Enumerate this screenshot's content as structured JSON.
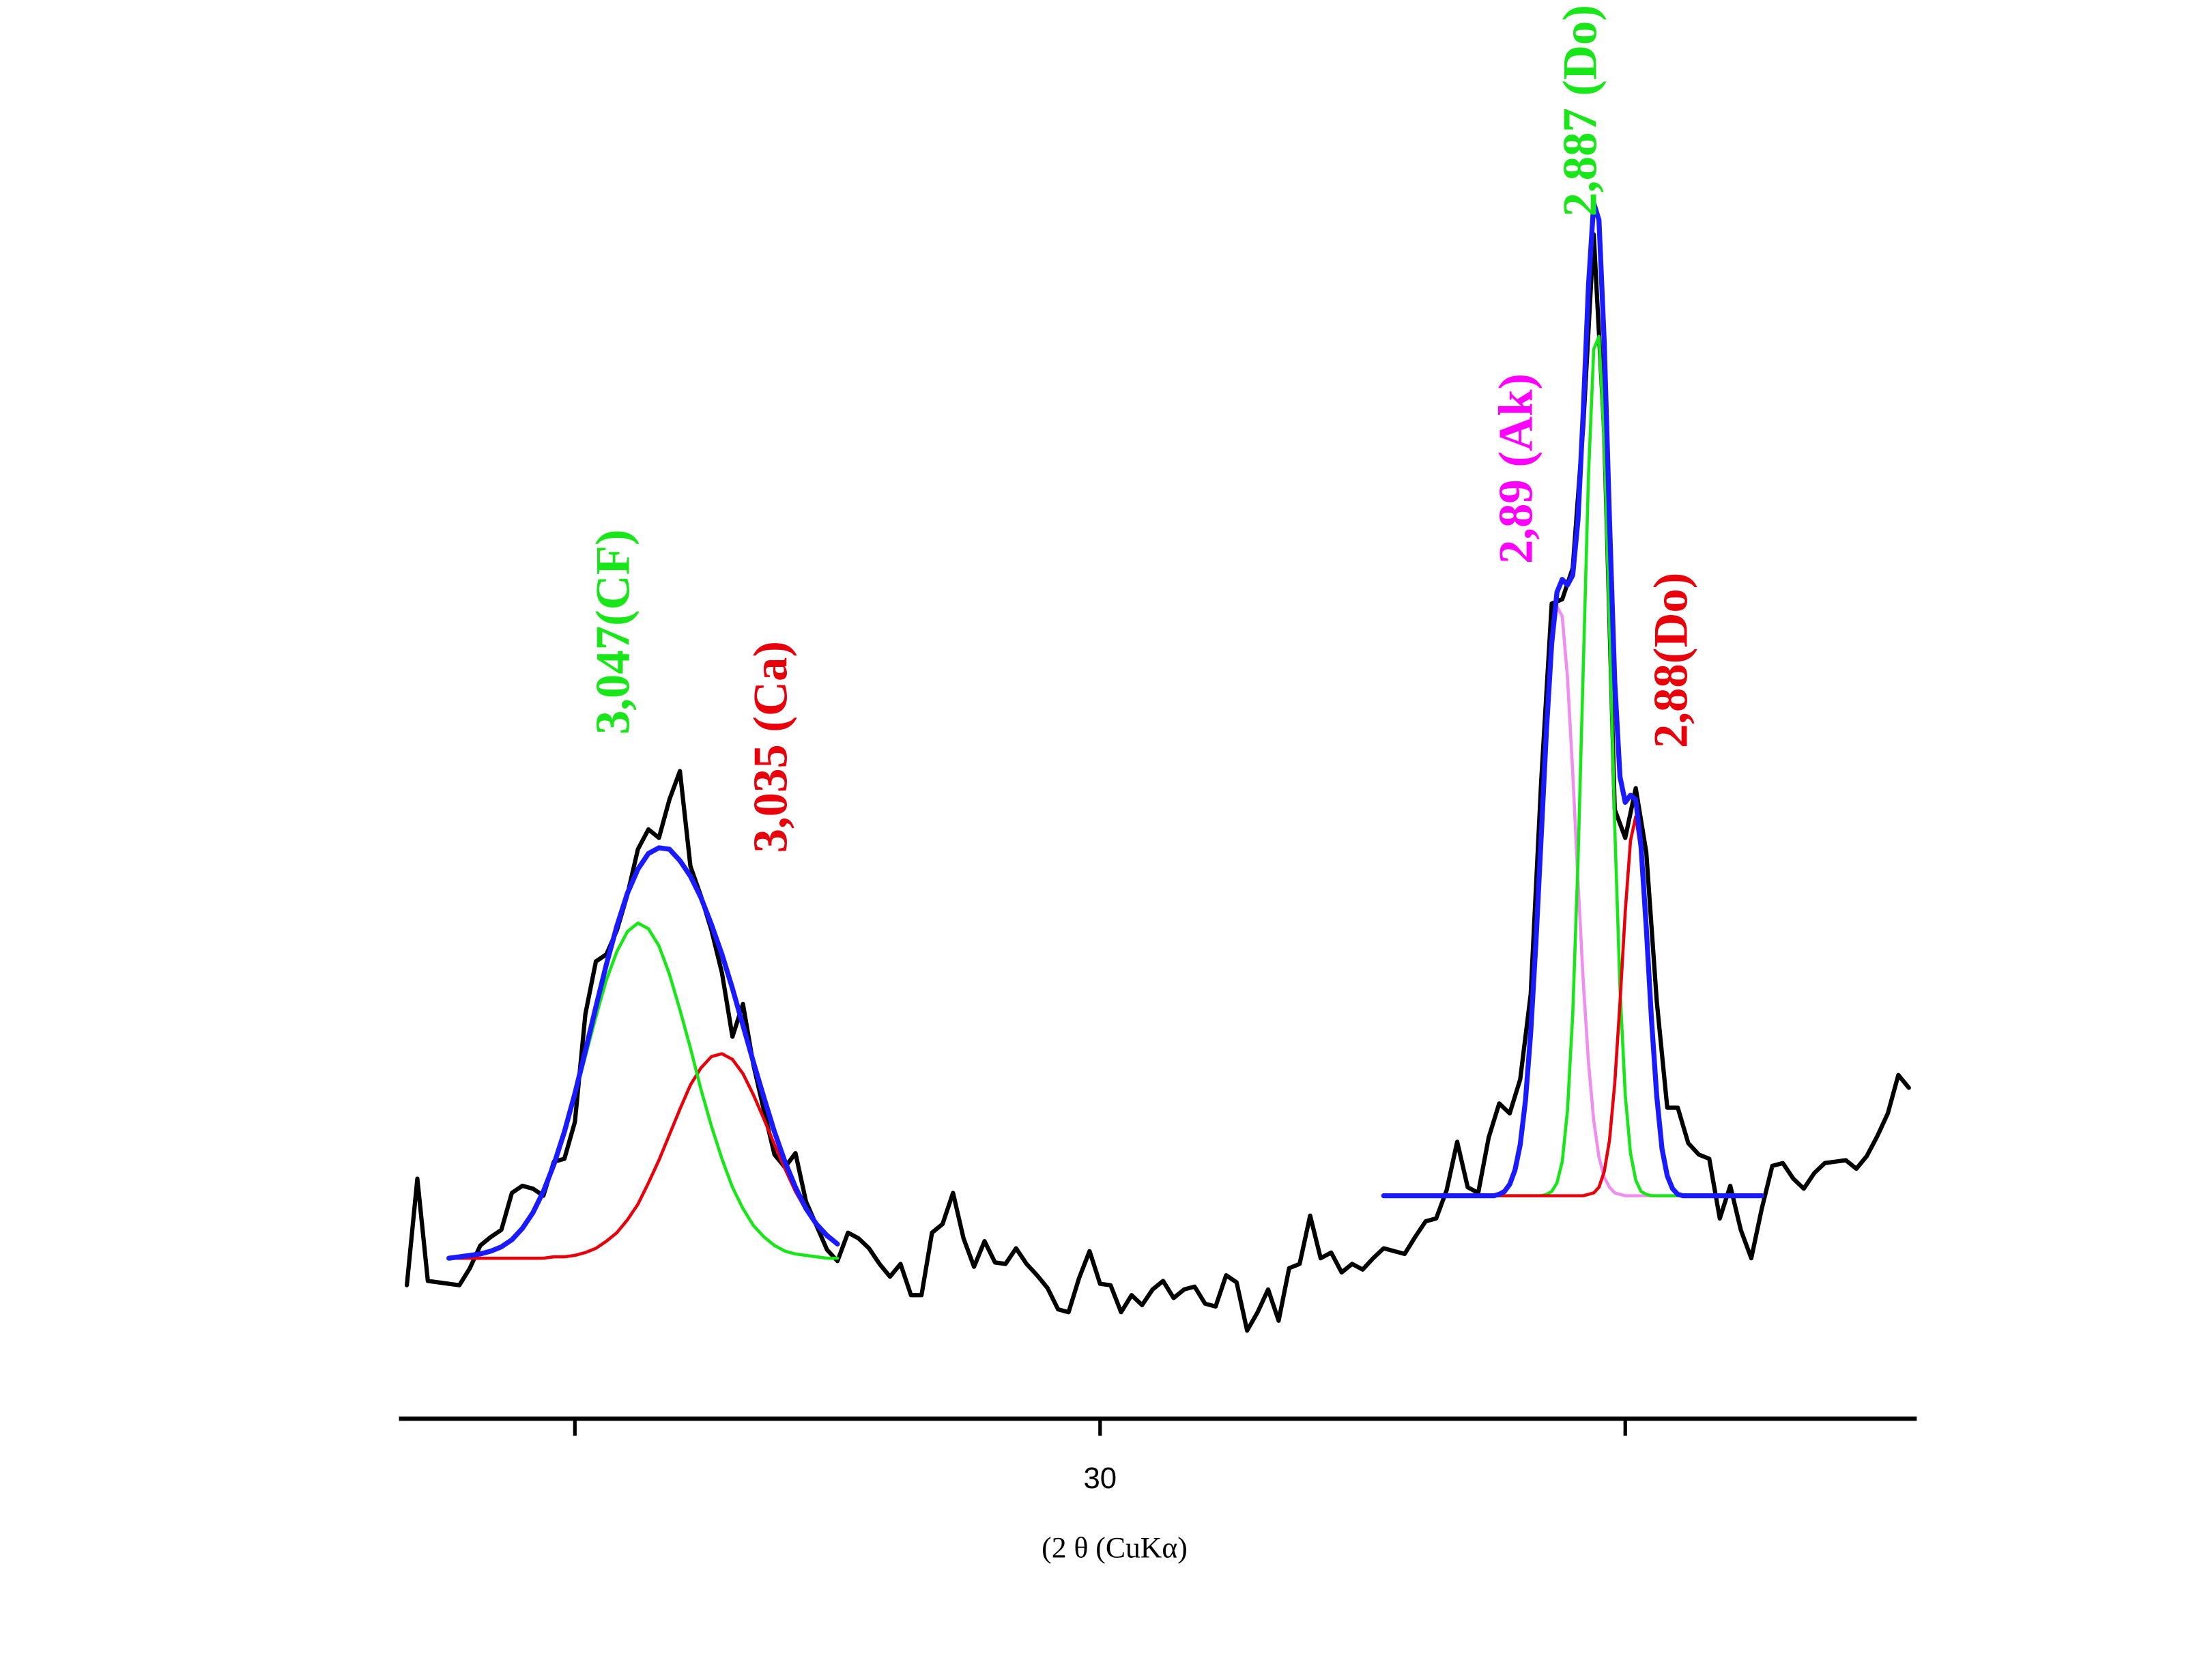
{
  "chart_data": {
    "type": "line",
    "x_label": "(2 θ  (CuKα)",
    "xlim": [
      28.665,
      31.555
    ],
    "xticks": [
      {
        "value": 29,
        "label": null
      },
      30,
      {
        "value": 31,
        "label": null
      }
    ],
    "ylim": [
      0,
      999
    ],
    "annotations": [
      {
        "text": "3,047(CF)",
        "color": "#19e619"
      },
      {
        "text": "3,035 (Ca)",
        "color": "#e8000b"
      },
      {
        "text": "2,89 (Ak)",
        "color": "#ff00ff"
      },
      {
        "text": "2,887 (Do)",
        "color": "#19e619"
      },
      {
        "text": "2,88(Do)",
        "color": "#e8000b"
      }
    ],
    "series": [
      {
        "color": "#000000",
        "x": [
          28.68,
          28.7,
          28.72,
          28.74,
          28.76,
          28.78,
          28.8,
          28.82,
          28.84,
          28.86,
          28.88,
          28.9,
          28.92,
          28.94,
          28.96,
          28.98,
          29.0,
          29.02,
          29.04,
          29.06,
          29.08,
          29.1,
          29.12,
          29.14,
          29.16,
          29.18,
          29.2,
          29.22,
          29.24,
          29.26,
          29.28,
          29.3,
          29.32,
          29.34,
          29.36,
          29.38,
          29.4,
          29.42,
          29.44,
          29.46,
          29.48,
          29.5,
          29.52,
          29.54,
          29.56,
          29.58,
          29.6,
          29.62,
          29.64,
          29.66,
          29.68,
          29.7,
          29.72,
          29.74,
          29.76,
          29.78,
          29.8,
          29.82,
          29.84,
          29.86,
          29.88,
          29.9,
          29.92,
          29.94,
          29.96,
          29.98,
          30.0,
          30.02,
          30.04,
          30.06,
          30.08,
          30.1,
          30.12,
          30.14,
          30.16,
          30.18,
          30.2,
          30.22,
          30.24,
          30.26,
          30.28,
          30.3,
          30.32,
          30.34,
          30.36,
          30.38,
          30.4,
          30.42,
          30.44,
          30.46,
          30.48,
          30.5,
          30.52,
          30.54,
          30.56,
          30.58,
          30.6,
          30.62,
          30.64,
          30.66,
          30.68,
          30.7,
          30.72,
          30.74,
          30.76,
          30.78,
          30.8,
          30.82,
          30.84,
          30.86,
          30.88,
          30.9,
          30.92,
          30.94,
          30.96,
          30.98,
          31.0,
          31.02,
          31.04,
          31.06,
          31.08,
          31.1,
          31.12,
          31.14,
          31.16,
          31.18,
          31.2,
          31.22,
          31.24,
          31.26,
          31.28,
          31.3,
          31.32,
          31.34,
          31.36,
          31.38,
          31.4,
          31.42,
          31.44,
          31.46,
          31.48,
          31.5,
          31.52,
          31.54
        ],
        "values": [
          94,
          169,
          97,
          96,
          95,
          94,
          106,
          122,
          128,
          133,
          159,
          164,
          162,
          157,
          181,
          183,
          209,
          285,
          322,
          327,
          344,
          369,
          401,
          415,
          409,
          436,
          456,
          389,
          368,
          344,
          314,
          269,
          292,
          249,
          217,
          186,
          177,
          187,
          153,
          136,
          119,
          111,
          131,
          127,
          120,
          109,
          100,
          109,
          87,
          87,
          131,
          137,
          159,
          127,
          107,
          125,
          110,
          109,
          120,
          109,
          101,
          92,
          77,
          75,
          99,
          118,
          95,
          94,
          75,
          87,
          80,
          91,
          97,
          85,
          91,
          93,
          81,
          79,
          101,
          96,
          62,
          75,
          91,
          69,
          106,
          109,
          143,
          113,
          117,
          103,
          109,
          105,
          113,
          120,
          118,
          116,
          128,
          139,
          141,
          161,
          195,
          163,
          159,
          198,
          222,
          215,
          239,
          299,
          449,
          574,
          577,
          599,
          699,
          834,
          694,
          429,
          409,
          444,
          399,
          294,
          219,
          219,
          194,
          186,
          183,
          141,
          164,
          133,
          113,
          148,
          178,
          180,
          169,
          162,
          173,
          180,
          181,
          182,
          176,
          185,
          199,
          215,
          242,
          233
        ]
      },
      {
        "color": "#e8000b",
        "x": [
          28.76,
          28.78,
          28.8,
          28.82,
          28.84,
          28.86,
          28.88,
          28.9,
          28.92,
          28.94,
          28.96,
          28.98,
          29.0,
          29.02,
          29.04,
          29.06,
          29.08,
          29.1,
          29.12,
          29.14,
          29.16,
          29.18,
          29.2,
          29.22,
          29.24,
          29.26,
          29.28,
          29.3,
          29.32,
          29.34,
          29.36,
          29.38,
          29.4,
          29.42,
          29.44,
          29.46,
          29.48,
          29.5
        ],
        "values": [
          113,
          113,
          113,
          113,
          113,
          113,
          113,
          113,
          113,
          113,
          114,
          114,
          115,
          117,
          120,
          125,
          131,
          140,
          151,
          166,
          182,
          200,
          218,
          235,
          247,
          255,
          257,
          253,
          243,
          228,
          211,
          193,
          176,
          160,
          147,
          136,
          128,
          123
        ]
      },
      {
        "color": "#19e619",
        "x": [
          28.76,
          28.78,
          28.8,
          28.82,
          28.84,
          28.86,
          28.88,
          28.9,
          28.92,
          28.94,
          28.96,
          28.98,
          29.0,
          29.02,
          29.04,
          29.06,
          29.08,
          29.1,
          29.12,
          29.14,
          29.16,
          29.18,
          29.2,
          29.22,
          29.24,
          29.26,
          29.28,
          29.3,
          29.32,
          29.34,
          29.36,
          29.38,
          29.4,
          29.42,
          29.44,
          29.46,
          29.48,
          29.5
        ],
        "values": [
          113,
          114,
          115,
          116,
          118,
          121,
          126,
          134,
          145,
          160,
          178,
          201,
          227,
          255,
          283,
          309,
          329,
          343,
          349,
          345,
          333,
          313,
          288,
          261,
          232,
          206,
          183,
          163,
          148,
          136,
          128,
          122,
          118,
          116,
          115,
          114,
          113,
          113
        ]
      },
      {
        "color": "#1a1aff",
        "x": [
          28.76,
          28.78,
          28.8,
          28.82,
          28.84,
          28.86,
          28.88,
          28.9,
          28.92,
          28.94,
          28.96,
          28.98,
          29.0,
          29.02,
          29.04,
          29.06,
          29.08,
          29.1,
          29.12,
          29.14,
          29.16,
          29.18,
          29.2,
          29.22,
          29.24,
          29.26,
          29.28,
          29.3,
          29.32,
          29.34,
          29.36,
          29.38,
          29.4,
          29.42,
          29.44,
          29.46,
          29.48,
          29.5
        ],
        "values": [
          113,
          114,
          115,
          116,
          118,
          121,
          126,
          134,
          145,
          160,
          179,
          202,
          229,
          259,
          290,
          320,
          347,
          370,
          387,
          398,
          402,
          401,
          393,
          382,
          367,
          348,
          327,
          303,
          277,
          251,
          226,
          202,
          181,
          163,
          148,
          137,
          129,
          123
        ]
      },
      {
        "color": "#f08ef0",
        "x": [
          30.54,
          30.55,
          30.56,
          30.57,
          30.58,
          30.59,
          30.6,
          30.61,
          30.62,
          30.63,
          30.64,
          30.65,
          30.66,
          30.67,
          30.68,
          30.69,
          30.7,
          30.71,
          30.72,
          30.73,
          30.74,
          30.75,
          30.76,
          30.77,
          30.78,
          30.79,
          30.8,
          30.81,
          30.82,
          30.83,
          30.84,
          30.85,
          30.86,
          30.87,
          30.88,
          30.89,
          30.9,
          30.91,
          30.92,
          30.93,
          30.94,
          30.95,
          30.96,
          30.97,
          30.98,
          30.99,
          31.0,
          31.01,
          31.02,
          31.03,
          31.04,
          31.05,
          31.06,
          31.07,
          31.08,
          31.09,
          31.1,
          31.11,
          31.12,
          31.13,
          31.14,
          31.15,
          31.16,
          31.17,
          31.18,
          31.19,
          31.2,
          31.21,
          31.22,
          31.23,
          31.24,
          31.25,
          31.26
        ],
        "values": [
          157,
          157,
          157,
          157,
          157,
          157,
          157,
          157,
          157,
          157,
          157,
          157,
          157,
          157,
          157,
          157,
          157,
          157,
          157,
          157,
          157,
          157,
          158,
          160,
          165,
          175,
          193,
          224,
          272,
          336,
          410,
          484,
          543,
          572,
          565,
          522,
          455,
          379,
          308,
          251,
          210,
          184,
          170,
          163,
          159,
          158,
          157,
          157,
          157,
          157,
          157,
          157,
          157,
          157,
          157,
          157,
          157,
          157,
          157,
          157,
          157,
          157,
          157,
          157,
          157,
          157,
          157,
          157,
          157,
          157,
          157,
          157,
          157
        ]
      },
      {
        "color": "#19e619",
        "x": [
          30.54,
          30.55,
          30.56,
          30.57,
          30.58,
          30.59,
          30.6,
          30.61,
          30.62,
          30.63,
          30.64,
          30.65,
          30.66,
          30.67,
          30.68,
          30.69,
          30.7,
          30.71,
          30.72,
          30.73,
          30.74,
          30.75,
          30.76,
          30.77,
          30.78,
          30.79,
          30.8,
          30.81,
          30.82,
          30.83,
          30.84,
          30.85,
          30.86,
          30.87,
          30.88,
          30.89,
          30.9,
          30.91,
          30.92,
          30.93,
          30.94,
          30.95,
          30.96,
          30.97,
          30.98,
          30.99,
          31.0,
          31.01,
          31.02,
          31.03,
          31.04,
          31.05,
          31.06,
          31.07,
          31.08,
          31.09,
          31.1,
          31.11,
          31.12,
          31.13,
          31.14,
          31.15,
          31.16,
          31.17,
          31.18,
          31.19,
          31.2,
          31.21,
          31.22,
          31.23,
          31.24,
          31.25,
          31.26
        ],
        "values": [
          157,
          157,
          157,
          157,
          157,
          157,
          157,
          157,
          157,
          157,
          157,
          157,
          157,
          157,
          157,
          157,
          157,
          157,
          157,
          157,
          157,
          157,
          157,
          157,
          157,
          157,
          157,
          157,
          157,
          157,
          157,
          158,
          160,
          166,
          181,
          217,
          285,
          392,
          528,
          664,
          753,
          762,
          687,
          557,
          417,
          303,
          228,
          187,
          168,
          160,
          158,
          157,
          157,
          157,
          157,
          157,
          157,
          157,
          157,
          157,
          157,
          157,
          157,
          157,
          157,
          157,
          157,
          157,
          157,
          157,
          157,
          157,
          157
        ]
      },
      {
        "color": "#e8000b",
        "x": [
          30.54,
          30.55,
          30.56,
          30.57,
          30.58,
          30.59,
          30.6,
          30.61,
          30.62,
          30.63,
          30.64,
          30.65,
          30.66,
          30.67,
          30.68,
          30.69,
          30.7,
          30.71,
          30.72,
          30.73,
          30.74,
          30.75,
          30.76,
          30.77,
          30.78,
          30.79,
          30.8,
          30.81,
          30.82,
          30.83,
          30.84,
          30.85,
          30.86,
          30.87,
          30.88,
          30.89,
          30.9,
          30.91,
          30.92,
          30.93,
          30.94,
          30.95,
          30.96,
          30.97,
          30.98,
          30.99,
          31.0,
          31.01,
          31.02,
          31.03,
          31.04,
          31.05,
          31.06,
          31.07,
          31.08,
          31.09,
          31.1,
          31.11,
          31.12,
          31.13,
          31.14,
          31.15,
          31.16,
          31.17,
          31.18,
          31.19,
          31.2,
          31.21,
          31.22,
          31.23,
          31.24,
          31.25,
          31.26
        ],
        "values": [
          157,
          157,
          157,
          157,
          157,
          157,
          157,
          157,
          157,
          157,
          157,
          157,
          157,
          157,
          157,
          157,
          157,
          157,
          157,
          157,
          157,
          157,
          157,
          157,
          157,
          157,
          157,
          157,
          157,
          157,
          157,
          157,
          157,
          157,
          157,
          157,
          157,
          157,
          157,
          158,
          159,
          163,
          174,
          196,
          236,
          293,
          357,
          407,
          424,
          399,
          345,
          281,
          227,
          190,
          171,
          162,
          158,
          157,
          157,
          157,
          157,
          157,
          157,
          157,
          157,
          157,
          157,
          157,
          157,
          157,
          157,
          157,
          157
        ]
      },
      {
        "color": "#1a1aff",
        "x": [
          30.54,
          30.55,
          30.56,
          30.57,
          30.58,
          30.59,
          30.6,
          30.61,
          30.62,
          30.63,
          30.64,
          30.65,
          30.66,
          30.67,
          30.68,
          30.69,
          30.7,
          30.71,
          30.72,
          30.73,
          30.74,
          30.75,
          30.76,
          30.77,
          30.78,
          30.79,
          30.8,
          30.81,
          30.82,
          30.83,
          30.84,
          30.85,
          30.86,
          30.87,
          30.88,
          30.89,
          30.9,
          30.91,
          30.92,
          30.93,
          30.94,
          30.95,
          30.96,
          30.97,
          30.98,
          30.99,
          31.0,
          31.01,
          31.02,
          31.03,
          31.04,
          31.05,
          31.06,
          31.07,
          31.08,
          31.09,
          31.1,
          31.11,
          31.12,
          31.13,
          31.14,
          31.15,
          31.16,
          31.17,
          31.18,
          31.19,
          31.2,
          31.21,
          31.22,
          31.23,
          31.24,
          31.25,
          31.26
        ],
        "values": [
          157,
          157,
          157,
          157,
          157,
          157,
          157,
          157,
          157,
          157,
          157,
          157,
          157,
          157,
          157,
          157,
          157,
          157,
          157,
          157,
          157,
          157,
          158,
          160,
          165,
          175,
          193,
          224,
          272,
          336,
          410,
          485,
          546,
          582,
          591,
          587,
          594,
          633,
          709,
          798,
          856,
          844,
          758,
          633,
          519,
          452,
          434,
          439,
          436,
          403,
          346,
          281,
          227,
          190,
          171,
          162,
          158,
          157,
          157,
          157,
          157,
          157,
          157,
          157,
          157,
          157,
          157,
          157,
          157,
          157,
          157,
          157,
          157
        ]
      }
    ]
  }
}
